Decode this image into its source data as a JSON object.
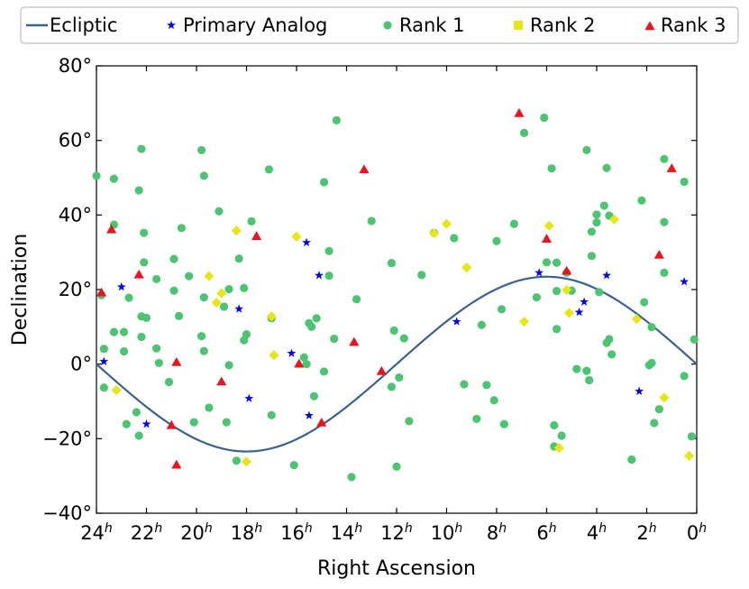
{
  "chart_data": {
    "type": "scatter",
    "xlabel": "Right Ascension",
    "ylabel": "Declination",
    "xlim": [
      24,
      0
    ],
    "ylim": [
      -40,
      80
    ],
    "x_ticks": [
      24,
      22,
      20,
      18,
      16,
      14,
      12,
      10,
      8,
      6,
      4,
      2,
      0
    ],
    "x_tick_labels": [
      "24",
      "22",
      "20",
      "18",
      "16",
      "14",
      "12",
      "10",
      "8",
      "6",
      "4",
      "2",
      "0"
    ],
    "x_tick_suffix": "h",
    "y_ticks": [
      80,
      60,
      40,
      20,
      0,
      -20,
      -40
    ],
    "y_tick_labels": [
      "80°",
      "60°",
      "40°",
      "20°",
      "0°",
      "−20°",
      "−40°"
    ],
    "legend_position": "top",
    "colors": {
      "ecliptic": "#3a6190",
      "primary": "#0000ee",
      "rank1": "#4dc472",
      "rank2": "#e6e619",
      "rank3": "#e8141e"
    },
    "series": [
      {
        "name": "Ecliptic",
        "kind": "line",
        "obliquity": 23.44
      },
      {
        "name": "Primary Analog",
        "kind": "star",
        "points": [
          [
            23.7,
            0.7
          ],
          [
            23.0,
            20.7
          ],
          [
            22.0,
            -16.1
          ],
          [
            18.3,
            14.8
          ],
          [
            17.9,
            -9.2
          ],
          [
            16.2,
            2.9
          ],
          [
            15.6,
            32.6
          ],
          [
            15.5,
            -13.8
          ],
          [
            15.1,
            23.8
          ],
          [
            9.6,
            11.4
          ],
          [
            6.3,
            24.5
          ],
          [
            4.7,
            13.9
          ],
          [
            4.5,
            16.7
          ],
          [
            3.6,
            23.8
          ],
          [
            2.3,
            -7.3
          ],
          [
            0.5,
            22.1
          ]
        ]
      },
      {
        "name": "Rank 1",
        "kind": "circle",
        "points": [
          [
            24.0,
            50.5
          ],
          [
            23.8,
            18.5
          ],
          [
            23.7,
            4.1
          ],
          [
            23.7,
            -6.3
          ],
          [
            23.3,
            37.4
          ],
          [
            23.3,
            49.7
          ],
          [
            23.3,
            8.6
          ],
          [
            22.9,
            8.6
          ],
          [
            22.9,
            3.4
          ],
          [
            22.8,
            -16.1
          ],
          [
            22.7,
            17.8
          ],
          [
            22.4,
            -12.9
          ],
          [
            22.3,
            -19.2
          ],
          [
            22.3,
            46.6
          ],
          [
            22.2,
            12.8
          ],
          [
            22.2,
            7.3
          ],
          [
            22.2,
            57.7
          ],
          [
            22.1,
            27.3
          ],
          [
            22.1,
            35.2
          ],
          [
            22.0,
            12.4
          ],
          [
            21.6,
            22.8
          ],
          [
            21.6,
            4.2
          ],
          [
            21.5,
            0.3
          ],
          [
            21.1,
            -4.8
          ],
          [
            20.9,
            28.2
          ],
          [
            20.9,
            19.7
          ],
          [
            20.7,
            12.9
          ],
          [
            20.6,
            36.5
          ],
          [
            20.3,
            23.6
          ],
          [
            20.1,
            -15.6
          ],
          [
            19.8,
            57.4
          ],
          [
            19.8,
            7.5
          ],
          [
            19.7,
            3.5
          ],
          [
            19.7,
            50.5
          ],
          [
            19.7,
            17.9
          ],
          [
            19.5,
            -11.7
          ],
          [
            19.1,
            41.0
          ],
          [
            18.9,
            15.4
          ],
          [
            18.8,
            -15.6
          ],
          [
            18.7,
            20.1
          ],
          [
            18.7,
            -0.3
          ],
          [
            18.4,
            -25.9
          ],
          [
            18.3,
            28.3
          ],
          [
            18.0,
            8.0
          ],
          [
            17.8,
            38.3
          ],
          [
            18.1,
            20.4
          ],
          [
            18.1,
            6.4
          ],
          [
            17.1,
            52.2
          ],
          [
            17.0,
            12.3
          ],
          [
            17.0,
            -13.7
          ],
          [
            16.1,
            -27.1
          ],
          [
            15.7,
            1.8
          ],
          [
            15.6,
            0.0
          ],
          [
            15.5,
            11.0
          ],
          [
            15.4,
            10.0
          ],
          [
            15.3,
            -8.6
          ],
          [
            15.2,
            12.3
          ],
          [
            14.9,
            -2.0
          ],
          [
            14.9,
            48.8
          ],
          [
            14.7,
            30.3
          ],
          [
            14.7,
            23.7
          ],
          [
            14.5,
            6.8
          ],
          [
            14.4,
            65.4
          ],
          [
            13.8,
            -30.3
          ],
          [
            13.6,
            17.4
          ],
          [
            13.0,
            38.4
          ],
          [
            12.2,
            27.1
          ],
          [
            12.2,
            -6.1
          ],
          [
            12.1,
            9.0
          ],
          [
            12.0,
            -27.5
          ],
          [
            11.9,
            -3.6
          ],
          [
            11.7,
            6.9
          ],
          [
            11.5,
            -15.3
          ],
          [
            11.0,
            23.9
          ],
          [
            10.5,
            35.2
          ],
          [
            9.7,
            33.8
          ],
          [
            9.3,
            -5.4
          ],
          [
            8.8,
            -14.7
          ],
          [
            8.6,
            10.5
          ],
          [
            8.4,
            -5.6
          ],
          [
            8.1,
            -9.7
          ],
          [
            8.0,
            33.0
          ],
          [
            7.8,
            14.7
          ],
          [
            7.7,
            -16.1
          ],
          [
            7.3,
            37.6
          ],
          [
            6.9,
            62.0
          ],
          [
            6.4,
            17.9
          ],
          [
            6.1,
            66.1
          ],
          [
            6.0,
            27.3
          ],
          [
            5.8,
            52.5
          ],
          [
            5.7,
            -22.1
          ],
          [
            5.7,
            -16.4
          ],
          [
            5.6,
            19.6
          ],
          [
            5.6,
            27.2
          ],
          [
            5.6,
            9.4
          ],
          [
            5.4,
            -19.2
          ],
          [
            5.2,
            24.5
          ],
          [
            5.0,
            19.7
          ],
          [
            4.8,
            -1.3
          ],
          [
            4.4,
            -1.8
          ],
          [
            4.4,
            57.4
          ],
          [
            4.3,
            -4.3
          ],
          [
            4.2,
            35.5
          ],
          [
            4.2,
            29.0
          ],
          [
            4.0,
            38.0
          ],
          [
            4.0,
            40.1
          ],
          [
            3.9,
            19.3
          ],
          [
            3.7,
            42.5
          ],
          [
            3.6,
            52.6
          ],
          [
            3.6,
            5.7
          ],
          [
            3.5,
            6.7
          ],
          [
            3.5,
            39.8
          ],
          [
            3.4,
            2.6
          ],
          [
            2.6,
            -25.6
          ],
          [
            2.2,
            43.9
          ],
          [
            2.1,
            16.6
          ],
          [
            1.9,
            -0.3
          ],
          [
            1.8,
            9.9
          ],
          [
            1.8,
            0.3
          ],
          [
            1.7,
            -15.8
          ],
          [
            1.5,
            -12.1
          ],
          [
            1.3,
            38.1
          ],
          [
            1.3,
            24.5
          ],
          [
            1.3,
            55.0
          ],
          [
            0.5,
            -3.2
          ],
          [
            0.5,
            48.9
          ],
          [
            0.2,
            -19.4
          ],
          [
            0.1,
            6.6
          ]
        ]
      },
      {
        "name": "Rank 2",
        "kind": "diamond",
        "points": [
          [
            23.2,
            -7.0
          ],
          [
            19.5,
            23.6
          ],
          [
            19.2,
            16.5
          ],
          [
            19.0,
            19.0
          ],
          [
            18.4,
            35.8
          ],
          [
            18.0,
            -26.2
          ],
          [
            17.0,
            12.8
          ],
          [
            16.9,
            2.4
          ],
          [
            16.0,
            34.2
          ],
          [
            10.5,
            35.1
          ],
          [
            10.0,
            37.6
          ],
          [
            9.2,
            25.9
          ],
          [
            6.9,
            11.4
          ],
          [
            5.9,
            37.1
          ],
          [
            5.5,
            -22.5
          ],
          [
            5.2,
            19.9
          ],
          [
            5.1,
            13.7
          ],
          [
            3.3,
            38.8
          ],
          [
            2.4,
            12.1
          ],
          [
            1.3,
            -9.0
          ],
          [
            0.3,
            -24.6
          ]
        ]
      },
      {
        "name": "Rank 3",
        "kind": "triangle",
        "points": [
          [
            23.8,
            19.2
          ],
          [
            23.4,
            36.1
          ],
          [
            22.3,
            24.0
          ],
          [
            21.0,
            -16.4
          ],
          [
            20.8,
            0.5
          ],
          [
            20.8,
            -27.0
          ],
          [
            19.0,
            -4.7
          ],
          [
            17.6,
            34.3
          ],
          [
            15.9,
            0.1
          ],
          [
            15.0,
            -15.7
          ],
          [
            13.7,
            5.9
          ],
          [
            13.3,
            52.2
          ],
          [
            12.6,
            -1.9
          ],
          [
            7.1,
            67.3
          ],
          [
            6.0,
            33.6
          ],
          [
            5.2,
            25.0
          ],
          [
            1.5,
            29.3
          ],
          [
            1.0,
            52.5
          ]
        ]
      }
    ]
  }
}
